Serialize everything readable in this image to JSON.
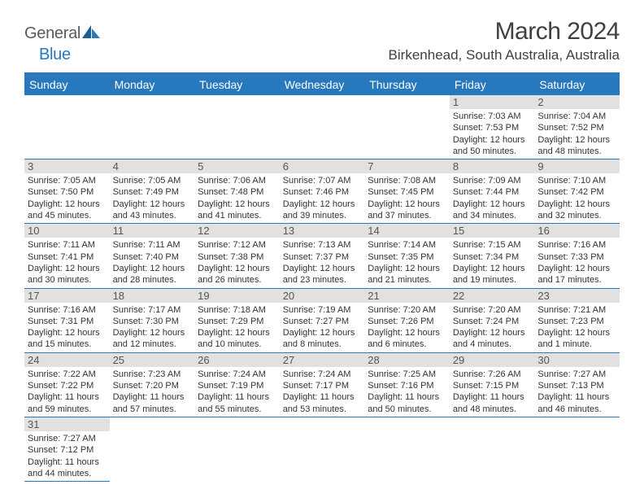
{
  "brand": {
    "part1": "General",
    "part2": "Blue"
  },
  "title": {
    "month": "March 2024",
    "location": "Birkenhead, South Australia, Australia"
  },
  "colors": {
    "accent": "#2878bd",
    "daybar": "#e1e1e1",
    "text": "#333333",
    "title": "#404040"
  },
  "days_of_week": [
    "Sunday",
    "Monday",
    "Tuesday",
    "Wednesday",
    "Thursday",
    "Friday",
    "Saturday"
  ],
  "grid": {
    "first_weekday_index": 5,
    "days": [
      {
        "n": 1,
        "sunrise": "7:03 AM",
        "sunset": "7:53 PM",
        "daylight": "12 hours and 50 minutes."
      },
      {
        "n": 2,
        "sunrise": "7:04 AM",
        "sunset": "7:52 PM",
        "daylight": "12 hours and 48 minutes."
      },
      {
        "n": 3,
        "sunrise": "7:05 AM",
        "sunset": "7:50 PM",
        "daylight": "12 hours and 45 minutes."
      },
      {
        "n": 4,
        "sunrise": "7:05 AM",
        "sunset": "7:49 PM",
        "daylight": "12 hours and 43 minutes."
      },
      {
        "n": 5,
        "sunrise": "7:06 AM",
        "sunset": "7:48 PM",
        "daylight": "12 hours and 41 minutes."
      },
      {
        "n": 6,
        "sunrise": "7:07 AM",
        "sunset": "7:46 PM",
        "daylight": "12 hours and 39 minutes."
      },
      {
        "n": 7,
        "sunrise": "7:08 AM",
        "sunset": "7:45 PM",
        "daylight": "12 hours and 37 minutes."
      },
      {
        "n": 8,
        "sunrise": "7:09 AM",
        "sunset": "7:44 PM",
        "daylight": "12 hours and 34 minutes."
      },
      {
        "n": 9,
        "sunrise": "7:10 AM",
        "sunset": "7:42 PM",
        "daylight": "12 hours and 32 minutes."
      },
      {
        "n": 10,
        "sunrise": "7:11 AM",
        "sunset": "7:41 PM",
        "daylight": "12 hours and 30 minutes."
      },
      {
        "n": 11,
        "sunrise": "7:11 AM",
        "sunset": "7:40 PM",
        "daylight": "12 hours and 28 minutes."
      },
      {
        "n": 12,
        "sunrise": "7:12 AM",
        "sunset": "7:38 PM",
        "daylight": "12 hours and 26 minutes."
      },
      {
        "n": 13,
        "sunrise": "7:13 AM",
        "sunset": "7:37 PM",
        "daylight": "12 hours and 23 minutes."
      },
      {
        "n": 14,
        "sunrise": "7:14 AM",
        "sunset": "7:35 PM",
        "daylight": "12 hours and 21 minutes."
      },
      {
        "n": 15,
        "sunrise": "7:15 AM",
        "sunset": "7:34 PM",
        "daylight": "12 hours and 19 minutes."
      },
      {
        "n": 16,
        "sunrise": "7:16 AM",
        "sunset": "7:33 PM",
        "daylight": "12 hours and 17 minutes."
      },
      {
        "n": 17,
        "sunrise": "7:16 AM",
        "sunset": "7:31 PM",
        "daylight": "12 hours and 15 minutes."
      },
      {
        "n": 18,
        "sunrise": "7:17 AM",
        "sunset": "7:30 PM",
        "daylight": "12 hours and 12 minutes."
      },
      {
        "n": 19,
        "sunrise": "7:18 AM",
        "sunset": "7:29 PM",
        "daylight": "12 hours and 10 minutes."
      },
      {
        "n": 20,
        "sunrise": "7:19 AM",
        "sunset": "7:27 PM",
        "daylight": "12 hours and 8 minutes."
      },
      {
        "n": 21,
        "sunrise": "7:20 AM",
        "sunset": "7:26 PM",
        "daylight": "12 hours and 6 minutes."
      },
      {
        "n": 22,
        "sunrise": "7:20 AM",
        "sunset": "7:24 PM",
        "daylight": "12 hours and 4 minutes."
      },
      {
        "n": 23,
        "sunrise": "7:21 AM",
        "sunset": "7:23 PM",
        "daylight": "12 hours and 1 minute."
      },
      {
        "n": 24,
        "sunrise": "7:22 AM",
        "sunset": "7:22 PM",
        "daylight": "11 hours and 59 minutes."
      },
      {
        "n": 25,
        "sunrise": "7:23 AM",
        "sunset": "7:20 PM",
        "daylight": "11 hours and 57 minutes."
      },
      {
        "n": 26,
        "sunrise": "7:24 AM",
        "sunset": "7:19 PM",
        "daylight": "11 hours and 55 minutes."
      },
      {
        "n": 27,
        "sunrise": "7:24 AM",
        "sunset": "7:17 PM",
        "daylight": "11 hours and 53 minutes."
      },
      {
        "n": 28,
        "sunrise": "7:25 AM",
        "sunset": "7:16 PM",
        "daylight": "11 hours and 50 minutes."
      },
      {
        "n": 29,
        "sunrise": "7:26 AM",
        "sunset": "7:15 PM",
        "daylight": "11 hours and 48 minutes."
      },
      {
        "n": 30,
        "sunrise": "7:27 AM",
        "sunset": "7:13 PM",
        "daylight": "11 hours and 46 minutes."
      },
      {
        "n": 31,
        "sunrise": "7:27 AM",
        "sunset": "7:12 PM",
        "daylight": "11 hours and 44 minutes."
      }
    ]
  },
  "labels": {
    "sunrise": "Sunrise:",
    "sunset": "Sunset:",
    "daylight": "Daylight:"
  }
}
